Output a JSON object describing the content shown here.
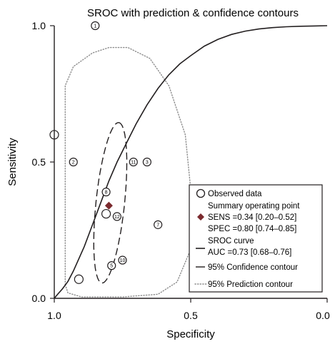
{
  "chart_data": {
    "type": "scatter",
    "title": "SROC with prediction & confidence contours",
    "xlabel": "Specificity",
    "ylabel": "Sensitivity",
    "xlim": [
      1.0,
      0.0
    ],
    "ylim": [
      0.0,
      1.0
    ],
    "x_reversed": true,
    "xticks": [
      "1.0",
      "0.5",
      "0.0"
    ],
    "yticks": [
      "0.0",
      "0.5",
      "1.0"
    ],
    "observed": [
      {
        "label": "1",
        "spec": 0.85,
        "sens": 1.0
      },
      {
        "label": "",
        "spec": 1.0,
        "sens": 0.6
      },
      {
        "label": "2",
        "spec": 0.93,
        "sens": 0.5
      },
      {
        "label": "11",
        "spec": 0.71,
        "sens": 0.5
      },
      {
        "label": "3",
        "spec": 0.66,
        "sens": 0.5
      },
      {
        "label": "8",
        "spec": 0.81,
        "sens": 0.39
      },
      {
        "label": "",
        "spec": 0.81,
        "sens": 0.31
      },
      {
        "label": "12",
        "spec": 0.77,
        "sens": 0.3
      },
      {
        "label": "7",
        "spec": 0.62,
        "sens": 0.27
      },
      {
        "label": "10",
        "spec": 0.75,
        "sens": 0.14
      },
      {
        "label": "5",
        "spec": 0.79,
        "sens": 0.12
      },
      {
        "label": "",
        "spec": 0.91,
        "sens": 0.07
      }
    ],
    "summary_point": {
      "spec": 0.8,
      "sens": 0.34
    },
    "sroc_auc": 0.73,
    "legend": {
      "placement": "bottom-right",
      "observed": "Observed data",
      "summary_title": "Summary operating point",
      "summary_sens": "SENS =0.34 [0.20–0.52]",
      "summary_spec": "SPEC =0.80 [0.74–0.85]",
      "sroc_title": "SROC curve",
      "sroc_auc": "AUC =0.73 [0.68–0.76]",
      "confidence": "95% Confidence contour",
      "prediction": "95% Prediction contour"
    },
    "colors": {
      "summary": "#7b2a2e",
      "line": "#231f20",
      "prediction": "#8c8c8c"
    }
  }
}
